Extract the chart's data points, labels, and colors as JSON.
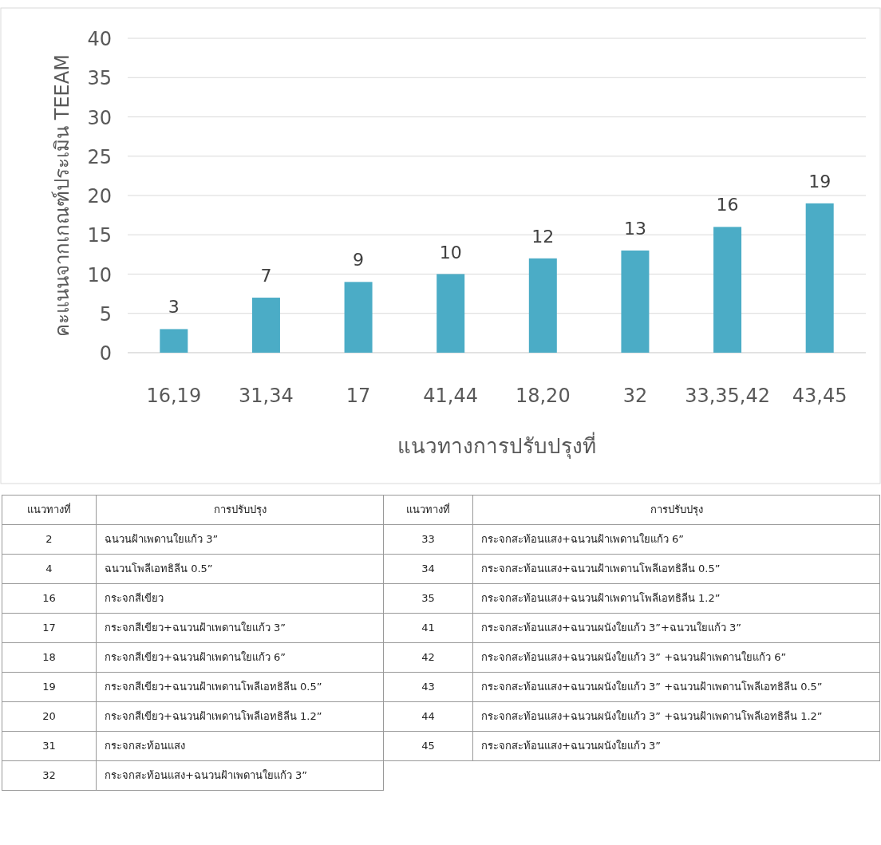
{
  "chart_data": {
    "type": "bar",
    "xlabel": "แนวทางการปรับปรุงที่",
    "ylabel": "คะแนนจากเกณฑ์ประเมิน TEEAM",
    "categories": [
      "16,19",
      "31,34",
      "17",
      "41,44",
      "18,20",
      "32",
      "33,35,42",
      "43,45"
    ],
    "values": [
      3,
      7,
      9,
      10,
      12,
      13,
      16,
      19
    ],
    "color": "#4bacc6",
    "data_labels": true,
    "ylim": [
      0,
      40
    ],
    "yticks": [
      0,
      5,
      10,
      15,
      20,
      25,
      30,
      35,
      40
    ],
    "grid": "y",
    "annotations": [
      "แนวทางที่",
      "การปรับปรุง",
      "แนวทางที่",
      "การปรับปรุง",
      "2",
      "ฉนวนฝ้าเพดานใยแก้ว 3”",
      "33",
      "กระจกสะท้อนแสง+ฉนวนฝ้าเพดานใยแก้ว 6”",
      "4",
      "ฉนวนโพลีเอทธิลีน 0.5”",
      "34",
      "กระจกสะท้อนแสง+ฉนวนฝ้าเพดานโพลีเอทธิลีน 0.5”",
      "16",
      "กระจกสีเขียว",
      "35",
      "กระจกสะท้อนแสง+ฉนวนฝ้าเพดานโพลีเอทธิลีน 1.2”",
      "17",
      "กระจกสีเขียว+ฉนวนฝ้าเพดานใยแก้ว 3”",
      "41",
      "กระจกสะท้อนแสง+ฉนวนผนังใยแก้ว 3”+ฉนวนใยแก้ว 3”",
      "18",
      "กระจกสีเขียว+ฉนวนฝ้าเพดานใยแก้ว 6”",
      "42",
      "กระจกสะท้อนแสง+ฉนวนผนังใยแก้ว 3” +ฉนวนฝ้าเพดานใยแก้ว 6”",
      "19",
      "กระจกสีเขียว+ฉนวนฝ้าเพดานโพลีเอทธิลีน 0.5”",
      "43",
      "กระจกสะท้อนแสง+ฉนวนผนังใยแก้ว 3” +ฉนวนฝ้าเพดานโพลีเอทธิลีน 0.5”",
      "20",
      "กระจกสีเขียว+ฉนวนฝ้าเพดานโพลีเอทธิลีน 1.2”",
      "44",
      "กระจกสะท้อนแสง+ฉนวนผนังใยแก้ว 3” +ฉนวนฝ้าเพดานโพลีเอทธิลีน 1.2”",
      "31",
      "กระจกสะท้อนแสง",
      "45",
      "กระจกสะท้อนแสง+ฉนวนผนังใยแก้ว 3”",
      "32",
      "กระจกสะท้อนแสง+ฉนวนฝ้าเพดานใยแก้ว 3”"
    ]
  }
}
